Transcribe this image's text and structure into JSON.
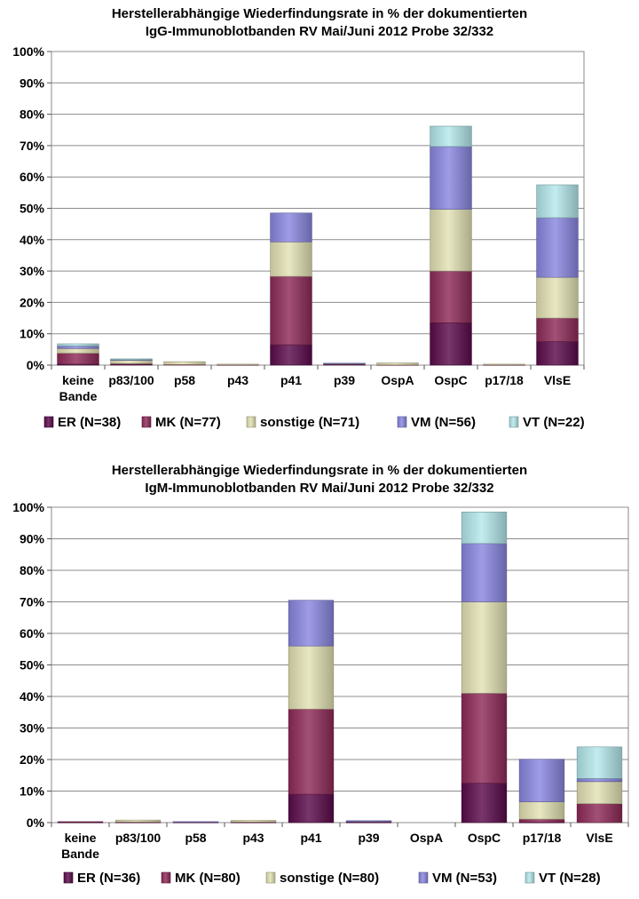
{
  "chart_data": [
    {
      "type": "bar",
      "stacked": true,
      "title": "Herstellerabhängige Wiederfindungsrate in % der dokumentierten",
      "subtitle": "IgG-Immunoblotbanden RV Mai/Juni 2012 Probe 32/332",
      "categories": [
        "keine Bande",
        "p83/100",
        "p58",
        "p43",
        "p41",
        "p39",
        "OspA",
        "OspC",
        "p17/18",
        "VlsE"
      ],
      "ylim": [
        0,
        100
      ],
      "yticks": [
        "0%",
        "10%",
        "20%",
        "30%",
        "40%",
        "50%",
        "60%",
        "70%",
        "80%",
        "90%",
        "100%"
      ],
      "grid": true,
      "legend_position": "bottom",
      "series": [
        {
          "name": "ER (N=38)",
          "color": "#5a0a4a",
          "values": [
            0.3,
            0.2,
            0.0,
            0.0,
            6.5,
            0.2,
            0.0,
            13.5,
            0.0,
            7.5
          ]
        },
        {
          "name": "MK (N=77)",
          "color": "#8e2a58",
          "values": [
            3.5,
            0.3,
            0.2,
            0.1,
            21.8,
            0.2,
            0.1,
            16.5,
            0.1,
            7.5
          ]
        },
        {
          "name": "sonstige (N=71)",
          "color": "#e3e2b4",
          "values": [
            1.5,
            1.0,
            0.9,
            0.2,
            11.0,
            0.1,
            0.6,
            19.7,
            0.2,
            13.0
          ]
        },
        {
          "name": "VM (N=56)",
          "color": "#8a86e0",
          "values": [
            0.8,
            0.2,
            0.0,
            0.0,
            9.2,
            0.1,
            0.0,
            20.0,
            0.0,
            19.0
          ]
        },
        {
          "name": "VT (N=22)",
          "color": "#b4e8ec",
          "values": [
            0.7,
            0.3,
            0.0,
            0.0,
            0.0,
            0.0,
            0.0,
            6.5,
            0.0,
            10.5
          ]
        }
      ]
    },
    {
      "type": "bar",
      "stacked": true,
      "title": "Herstellerabhängige Wiederfindungsrate in % der dokumentierten",
      "subtitle": "IgM-Immunoblotbanden RV Mai/Juni 2012 Probe 32/332",
      "categories": [
        "keine Bande",
        "p83/100",
        "p58",
        "p43",
        "p41",
        "p39",
        "OspA",
        "OspC",
        "p17/18",
        "VlsE"
      ],
      "ylim": [
        0,
        100
      ],
      "yticks": [
        "0%",
        "10%",
        "20%",
        "30%",
        "40%",
        "50%",
        "60%",
        "70%",
        "80%",
        "90%",
        "100%"
      ],
      "grid": true,
      "legend_position": "bottom",
      "series": [
        {
          "name": "ER (N=36)",
          "color": "#5a0a4a",
          "values": [
            0.1,
            0.1,
            0.1,
            0.1,
            9.0,
            0.1,
            0.0,
            12.5,
            0.1,
            0.0
          ]
        },
        {
          "name": "MK (N=80)",
          "color": "#8e2a58",
          "values": [
            0.2,
            0.1,
            0.1,
            0.1,
            27.0,
            0.2,
            0.0,
            28.5,
            1.0,
            6.0
          ]
        },
        {
          "name": "sonstige (N=80)",
          "color": "#e3e2b4",
          "values": [
            0.0,
            0.6,
            0.0,
            0.5,
            20.0,
            0.0,
            0.0,
            29.0,
            5.5,
            7.0
          ]
        },
        {
          "name": "VM (N=53)",
          "color": "#8a86e0",
          "values": [
            0.0,
            0.0,
            0.1,
            0.0,
            14.5,
            0.3,
            0.0,
            18.5,
            13.5,
            1.0
          ]
        },
        {
          "name": "VT (N=28)",
          "color": "#b4e8ec",
          "values": [
            0.0,
            0.0,
            0.0,
            0.0,
            0.0,
            0.0,
            0.0,
            10.0,
            0.0,
            10.0
          ]
        }
      ]
    }
  ]
}
